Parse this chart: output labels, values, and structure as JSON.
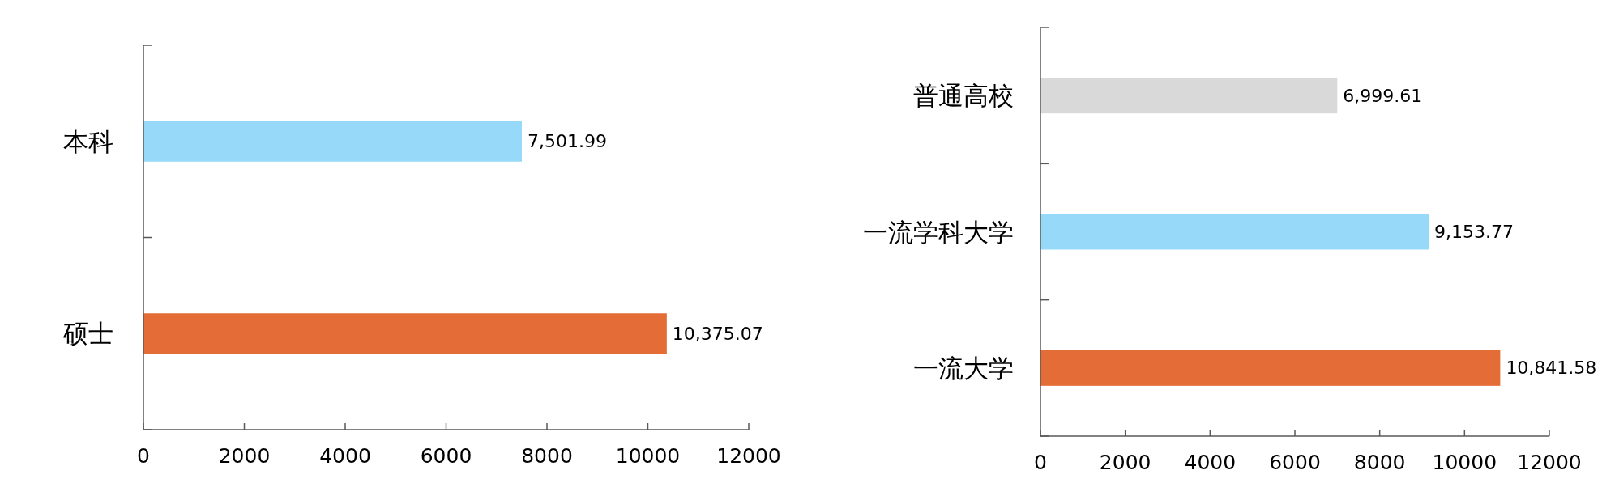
{
  "chart_data": [
    {
      "type": "bar",
      "orientation": "horizontal",
      "categories": [
        "本科",
        "硕士"
      ],
      "values": [
        7501.99,
        10375.07
      ],
      "colors": [
        "#97d9f8",
        "#e46c37"
      ],
      "xlim": [
        0,
        12000
      ],
      "xticks": [
        0,
        2000,
        4000,
        6000,
        8000,
        10000,
        12000
      ],
      "value_labels": [
        "7,501.99",
        "10,375.07"
      ]
    },
    {
      "type": "bar",
      "orientation": "horizontal",
      "categories": [
        "普通高校",
        "一流学科大学",
        "一流大学"
      ],
      "values": [
        6999.61,
        9153.77,
        10841.58
      ],
      "colors": [
        "#d9d9d9",
        "#97d9f8",
        "#e46c37"
      ],
      "xlim": [
        0,
        12000
      ],
      "xticks": [
        0,
        2000,
        4000,
        6000,
        8000,
        10000,
        12000
      ],
      "value_labels": [
        "6,999.61",
        "9,153.77",
        "10,841.58"
      ]
    }
  ]
}
